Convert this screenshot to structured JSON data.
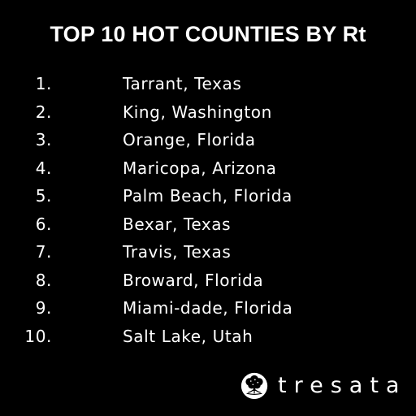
{
  "title": "TOP 10 HOT COUNTIES BY Rt",
  "counties": [
    {
      "rank": "1.",
      "name": "Tarrant, Texas"
    },
    {
      "rank": "2.",
      "name": "King, Washington"
    },
    {
      "rank": "3.",
      "name": "Orange, Florida"
    },
    {
      "rank": "4.",
      "name": "Maricopa, Arizona"
    },
    {
      "rank": "5.",
      "name": "Palm Beach, Florida"
    },
    {
      "rank": "6.",
      "name": "Bexar, Texas"
    },
    {
      "rank": "7.",
      "name": "Travis, Texas"
    },
    {
      "rank": "8.",
      "name": "Broward, Florida"
    },
    {
      "rank": "9.",
      "name": "Miami-dade, Florida"
    },
    {
      "rank": "10.",
      "name": "Salt Lake, Utah"
    }
  ],
  "brand": {
    "name": "tresata",
    "icon": "tree-icon"
  },
  "colors": {
    "background": "#000000",
    "text": "#ffffff"
  }
}
